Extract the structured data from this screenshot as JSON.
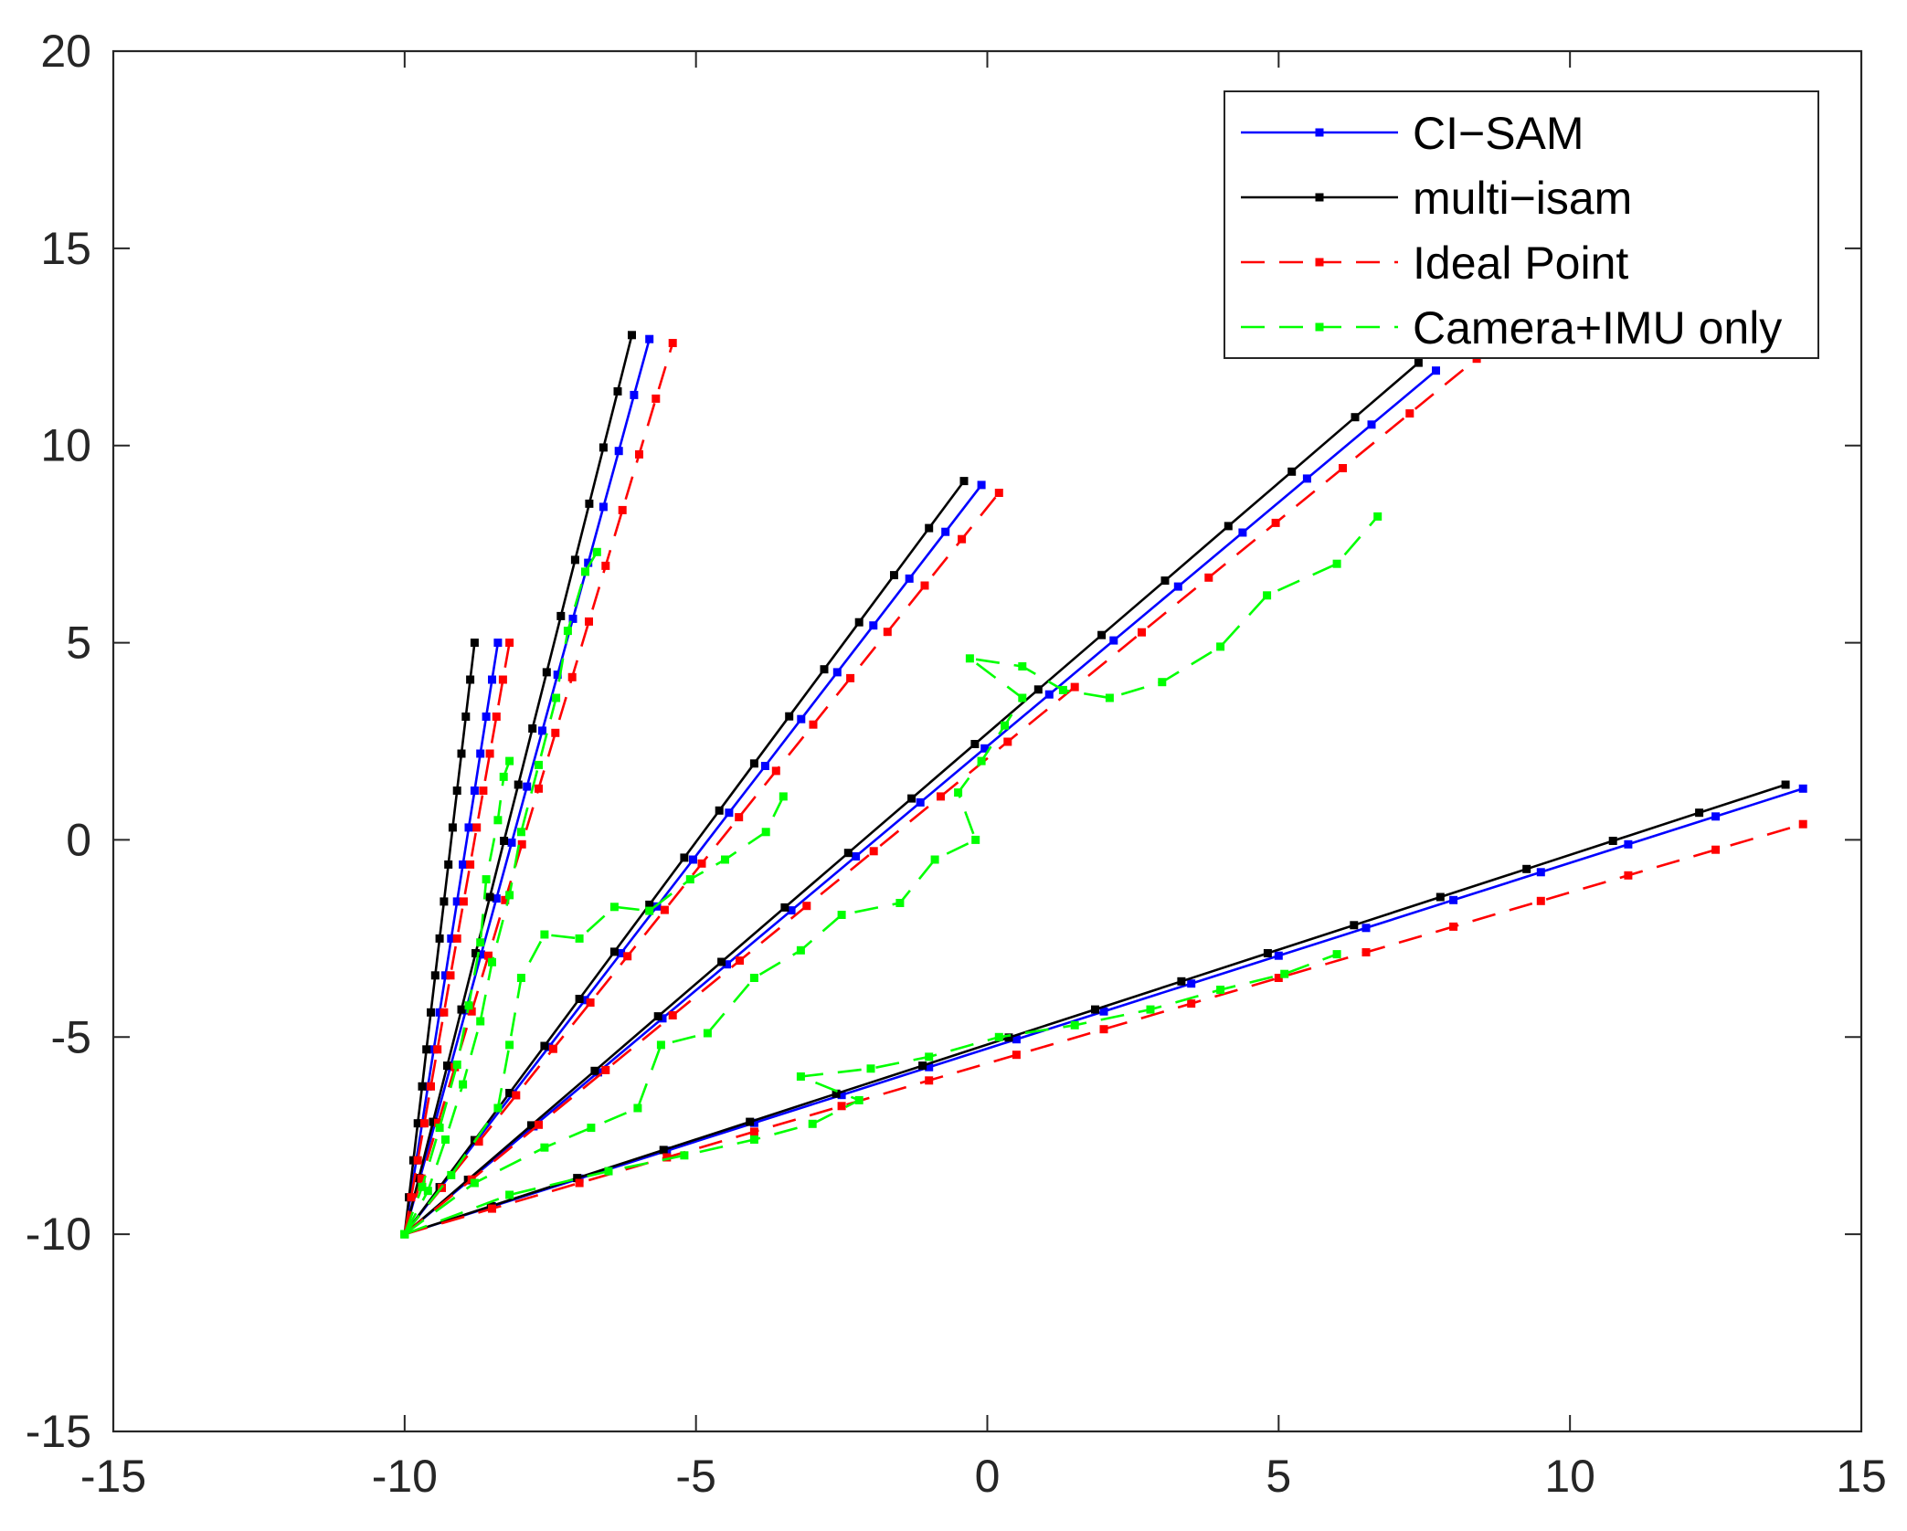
{
  "chart_data": {
    "type": "line",
    "title": "",
    "xlabel": "",
    "ylabel": "",
    "xlim": [
      -15,
      15
    ],
    "ylim": [
      -15,
      20
    ],
    "xticks": [
      -15,
      -10,
      -5,
      0,
      5,
      10,
      15
    ],
    "yticks": [
      -15,
      -10,
      -5,
      0,
      5,
      10,
      15,
      20
    ],
    "xtick_labels": [
      "-15",
      "-10",
      "-5",
      "0",
      "5",
      "10",
      "15"
    ],
    "ytick_labels": [
      "-15",
      "-10",
      "-5",
      "0",
      "5",
      "10",
      "15",
      "20"
    ],
    "grid": false,
    "legend_position": "top-right",
    "origin": [
      -10,
      -10
    ],
    "series": [
      {
        "name": "CI−SAM",
        "color": "#0000ff",
        "line_style": "solid",
        "marker": "square",
        "endpoints": [
          [
            -8.4,
            5.0
          ],
          [
            -5.8,
            12.7
          ],
          [
            -0.1,
            9.0
          ],
          [
            7.7,
            11.9
          ],
          [
            14.0,
            1.3
          ]
        ]
      },
      {
        "name": "multi−isam",
        "color": "#000000",
        "line_style": "solid",
        "marker": "square",
        "endpoints": [
          [
            -8.8,
            5.0
          ],
          [
            -6.1,
            12.8
          ],
          [
            -0.4,
            9.1
          ],
          [
            7.4,
            12.1
          ],
          [
            13.7,
            1.4
          ]
        ]
      },
      {
        "name": "Ideal Point",
        "color": "#ff0000",
        "line_style": "dashed",
        "marker": "square",
        "endpoints": [
          [
            -8.2,
            5.0
          ],
          [
            -5.4,
            12.6
          ],
          [
            0.2,
            8.8
          ],
          [
            8.4,
            12.2
          ],
          [
            14.0,
            0.4
          ]
        ]
      },
      {
        "name": "Camera+IMU only",
        "color": "#00ff00",
        "line_style": "dashed",
        "marker": "square",
        "paths": [
          [
            [
              -10.0,
              -10.0
            ],
            [
              -9.6,
              -8.9
            ],
            [
              -9.3,
              -7.6
            ],
            [
              -9.0,
              -6.2
            ],
            [
              -8.7,
              -4.6
            ],
            [
              -8.5,
              -3.1
            ],
            [
              -8.2,
              -1.4
            ],
            [
              -8.0,
              0.2
            ],
            [
              -7.7,
              1.9
            ],
            [
              -7.4,
              3.6
            ],
            [
              -7.2,
              5.3
            ],
            [
              -6.9,
              6.8
            ],
            [
              -6.7,
              7.3
            ]
          ],
          [
            [
              -10.0,
              -10.0
            ],
            [
              -9.7,
              -8.8
            ],
            [
              -9.4,
              -7.3
            ],
            [
              -9.1,
              -5.7
            ],
            [
              -8.9,
              -4.2
            ],
            [
              -8.7,
              -2.6
            ],
            [
              -8.6,
              -1.0
            ],
            [
              -8.4,
              0.5
            ],
            [
              -8.3,
              1.6
            ],
            [
              -8.2,
              2.0
            ]
          ],
          [
            [
              -10.0,
              -10.0
            ],
            [
              -9.2,
              -8.5
            ],
            [
              -8.4,
              -6.8
            ],
            [
              -8.2,
              -5.2
            ],
            [
              -8.0,
              -3.5
            ],
            [
              -7.6,
              -2.4
            ],
            [
              -7.0,
              -2.5
            ],
            [
              -6.4,
              -1.7
            ],
            [
              -5.8,
              -1.8
            ],
            [
              -5.1,
              -1.0
            ],
            [
              -4.5,
              -0.5
            ],
            [
              -3.8,
              0.2
            ],
            [
              -3.5,
              1.1
            ]
          ],
          [
            [
              -10.0,
              -10.0
            ],
            [
              -8.8,
              -8.7
            ],
            [
              -7.6,
              -7.8
            ],
            [
              -6.8,
              -7.3
            ],
            [
              -6.0,
              -6.8
            ],
            [
              -5.6,
              -5.2
            ],
            [
              -4.8,
              -4.9
            ],
            [
              -4.0,
              -3.5
            ],
            [
              -3.2,
              -2.8
            ],
            [
              -2.5,
              -1.9
            ],
            [
              -1.5,
              -1.6
            ],
            [
              -0.9,
              -0.5
            ],
            [
              -0.2,
              0.0
            ],
            [
              -0.5,
              1.2
            ],
            [
              -0.1,
              2.0
            ],
            [
              0.3,
              2.9
            ],
            [
              0.6,
              3.6
            ],
            [
              -0.3,
              4.6
            ],
            [
              0.6,
              4.4
            ],
            [
              1.3,
              3.8
            ],
            [
              2.1,
              3.6
            ],
            [
              3.0,
              4.0
            ],
            [
              4.0,
              4.9
            ],
            [
              4.8,
              6.2
            ],
            [
              6.0,
              7.0
            ],
            [
              6.7,
              8.2
            ]
          ],
          [
            [
              -10.0,
              -10.0
            ],
            [
              -8.2,
              -9.0
            ],
            [
              -6.5,
              -8.4
            ],
            [
              -5.2,
              -8.0
            ],
            [
              -4.0,
              -7.6
            ],
            [
              -3.0,
              -7.2
            ],
            [
              -2.2,
              -6.6
            ],
            [
              -3.2,
              -6.0
            ],
            [
              -2.0,
              -5.8
            ],
            [
              -1.0,
              -5.5
            ],
            [
              0.2,
              -5.0
            ],
            [
              1.5,
              -4.7
            ],
            [
              2.8,
              -4.3
            ],
            [
              4.0,
              -3.8
            ],
            [
              5.1,
              -3.4
            ],
            [
              6.0,
              -2.9
            ]
          ]
        ]
      }
    ]
  }
}
